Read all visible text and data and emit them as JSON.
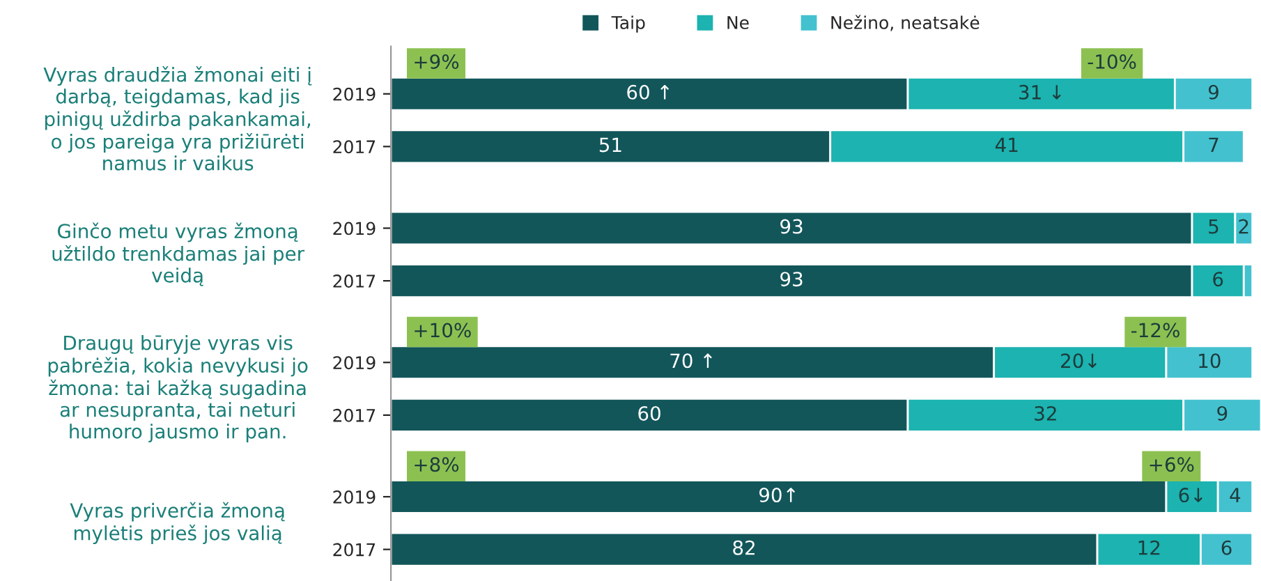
{
  "chart_data": {
    "type": "bar",
    "orientation": "horizontal",
    "stacked": true,
    "legend": "top",
    "categories": [
      "2019",
      "2017",
      "2019",
      "2017",
      "2019",
      "2017",
      "2019",
      "2017"
    ],
    "series": [
      {
        "name": "Taip",
        "color": "#12565a",
        "values": [
          60,
          51,
          93,
          93,
          70,
          60,
          90,
          82
        ],
        "value_labels": [
          "60 ↑",
          "51",
          "93",
          "93",
          "70 ↑",
          "60",
          "90↑",
          "82"
        ]
      },
      {
        "name": "Ne",
        "color": "#1cb3b0",
        "values": [
          31,
          41,
          5,
          6,
          20,
          32,
          6,
          12
        ],
        "value_labels": [
          "31 ↓",
          "41",
          "5",
          "6",
          "20↓",
          "32",
          "6↓",
          "12"
        ]
      },
      {
        "name": "Nežino, neatsakė",
        "color": "#44c1cf",
        "values": [
          9,
          7,
          2,
          1,
          10,
          9,
          4,
          6
        ],
        "value_labels": [
          "9",
          "7",
          "2",
          null,
          "10",
          "9",
          "4",
          "6"
        ]
      }
    ],
    "annotations": [
      "Vyras draudžia žmonai eiti į\ndarbą, teigdamas, kad jis\npinigų uždirba pakankamai,\no jos pareiga yra prižiūrėti\nnamus ir vaikus",
      "Ginčo metu vyras žmoną\nužtildo trenkdamas jai per\nveidą",
      "Draugų būryje vyras vis\npabrėžia, kokia nevykusi jo\nžmona: tai kažką sugadina\nar nesupranta, tai neturi\nhumoro jausmo ir pan.",
      "Vyras priverčia žmoną\nmylėtis prieš jos valią",
      "+9%",
      "-10%",
      "+10%",
      "-12%",
      "+8%",
      "+6%"
    ]
  }
}
